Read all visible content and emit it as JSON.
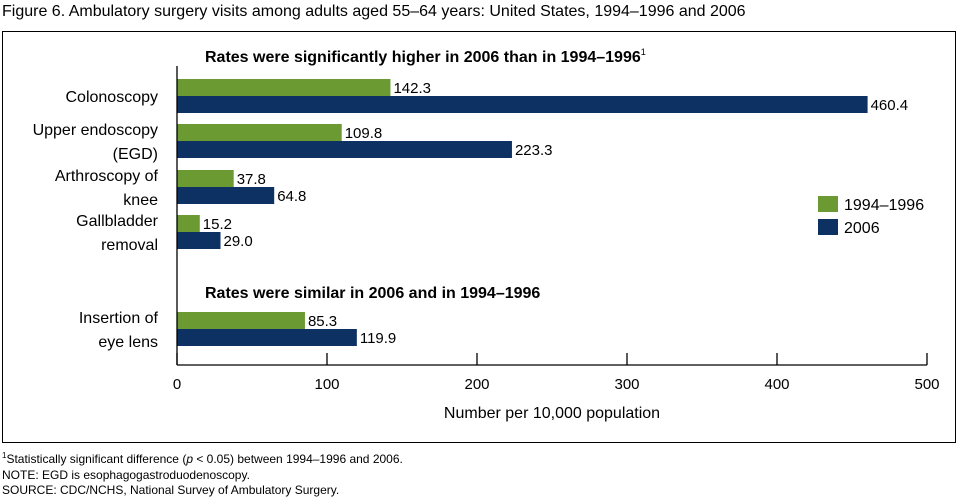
{
  "figure_title": "Figure 6. Ambulatory surgery visits among adults aged 55–64 years: United States, 1994–1996 and 2006",
  "colors": {
    "series_1994_1996": "#6a9a31",
    "series_2006": "#0d3163"
  },
  "chart_data": {
    "type": "bar",
    "orientation": "horizontal",
    "sections": [
      {
        "title": "Rates were significantly higher in 2006 than in 1994–1996",
        "superscript": "1"
      },
      {
        "title": "Rates were similar in 2006 and in 1994–1996",
        "superscript": ""
      }
    ],
    "categories": [
      {
        "lines": [
          "Colonoscopy"
        ],
        "section": 0
      },
      {
        "lines": [
          "Upper endoscopy",
          "(EGD)"
        ],
        "section": 0
      },
      {
        "lines": [
          "Arthroscopy of",
          "knee"
        ],
        "section": 0
      },
      {
        "lines": [
          "Gallbladder",
          "removal"
        ],
        "section": 0
      },
      {
        "lines": [
          "Insertion of",
          "eye lens"
        ],
        "section": 1
      }
    ],
    "series": [
      {
        "name": "1994–1996",
        "values": [
          142.3,
          109.8,
          37.8,
          15.2,
          85.3
        ],
        "labels": [
          "142.3",
          "109.8",
          "37.8",
          "15.2",
          "85.3"
        ]
      },
      {
        "name": "2006",
        "values": [
          460.4,
          223.3,
          64.8,
          29.0,
          119.9
        ],
        "labels": [
          "460.4",
          "223.3",
          "64.8",
          "29.0",
          "119.9"
        ]
      }
    ],
    "xlim": [
      0,
      500
    ],
    "xticks": [
      0,
      100,
      200,
      300,
      400,
      500
    ],
    "xlabel": "Number per 10,000 population",
    "legend": "right",
    "grid": false
  },
  "footnotes": {
    "note1_sup": "1",
    "note1_pre": "Statistically significant difference (",
    "note1_p": "p",
    "note1_post": " < 0.05) between 1994–1996 and 2006.",
    "note2": "NOTE: EGD is esophagogastroduodenoscopy.",
    "note3": "SOURCE: CDC/NCHS, National Survey of Ambulatory Surgery."
  }
}
